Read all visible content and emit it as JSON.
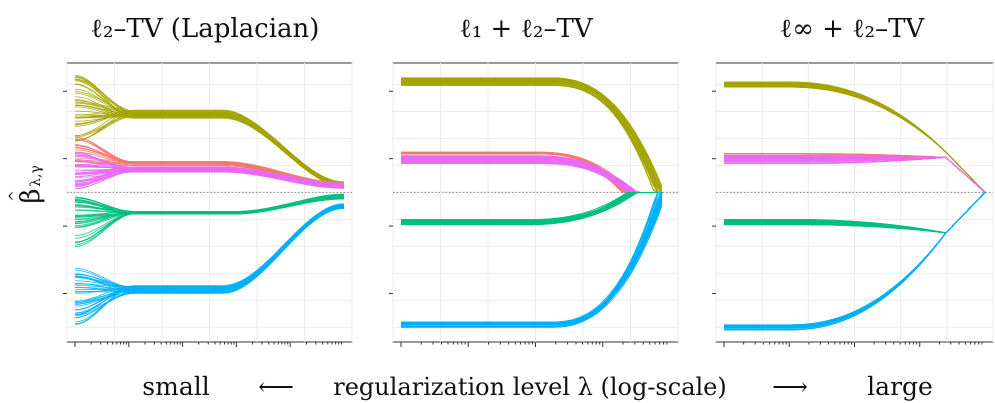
{
  "ylabel": {
    "hat": "^",
    "main": "β",
    "subscript": "λ,γ"
  },
  "xaxis_caption": {
    "left": "small",
    "left_arrow": "⟵",
    "middle": "regularization level λ (log-scale)",
    "right_arrow": "⟶",
    "right": "large"
  },
  "colors": {
    "olive": "#a3a500",
    "salmon": "#f8766d",
    "magenta": "#e76bf3",
    "green": "#00bf7d",
    "blue": "#00b0f6"
  },
  "chart_data": [
    {
      "type": "line",
      "title": "ℓ₂–TV (Laplacian)",
      "xscale": "log",
      "x_range": [
        0,
        1
      ],
      "ylim": [
        -1.05,
        0.9
      ],
      "ylabel": "β̂ λ,γ",
      "grid": true,
      "legend": "none",
      "group_paths": [
        {
          "group": "olive",
          "count": 40,
          "start": [
            0.38,
            0.9
          ],
          "plateau": 0.58,
          "end": 0.06,
          "spread": 0.2,
          "plateau_spread": 0.03,
          "decay_x": [
            0.55,
            1.0
          ]
        },
        {
          "group": "salmon",
          "count": 20,
          "start": [
            0.18,
            0.42
          ],
          "plateau": 0.21,
          "end": 0.05,
          "spread": 0.12,
          "plateau_spread": 0.02,
          "decay_x": [
            0.55,
            1.0
          ]
        },
        {
          "group": "magenta",
          "count": 40,
          "start": [
            0.02,
            0.3
          ],
          "plateau": 0.17,
          "end": 0.05,
          "spread": 0.14,
          "plateau_spread": 0.02,
          "decay_x": [
            0.55,
            1.0
          ]
        },
        {
          "group": "green",
          "count": 40,
          "start": [
            -0.42,
            -0.02
          ],
          "plateau": -0.15,
          "end": -0.03,
          "spread": 0.2,
          "plateau_spread": 0.01,
          "decay_x": [
            0.6,
            1.0
          ]
        },
        {
          "group": "blue",
          "count": 40,
          "start": [
            -0.98,
            -0.55
          ],
          "plateau": -0.72,
          "end": -0.1,
          "spread": 0.22,
          "plateau_spread": 0.03,
          "decay_x": [
            0.55,
            1.0
          ]
        }
      ]
    },
    {
      "type": "line",
      "title": "ℓ₁ + ℓ₂–TV",
      "xscale": "log",
      "x_range": [
        0,
        1
      ],
      "ylim": [
        -1.05,
        0.9
      ],
      "grid": true,
      "legend": "none",
      "group_paths": [
        {
          "group": "olive",
          "level": 0.82,
          "spread": 0.03,
          "count": 40,
          "zero_at": 0.96,
          "decay_start": 0.55
        },
        {
          "group": "salmon",
          "level": 0.28,
          "spread": 0.02,
          "count": 20,
          "zero_at": 0.84,
          "decay_start": 0.5
        },
        {
          "group": "magenta",
          "level": 0.24,
          "spread": 0.03,
          "count": 40,
          "zero_at": 0.86,
          "decay_start": 0.5
        },
        {
          "group": "green",
          "level": -0.22,
          "spread": 0.02,
          "count": 40,
          "zero_at": 0.86,
          "decay_start": 0.45
        },
        {
          "group": "blue",
          "level": -0.98,
          "spread": 0.02,
          "count": 40,
          "zero_at": 0.97,
          "decay_start": 0.55
        }
      ]
    },
    {
      "type": "line",
      "title": "ℓ∞ + ℓ₂–TV",
      "xscale": "log",
      "x_range": [
        0,
        1
      ],
      "ylim": [
        -1.05,
        0.9
      ],
      "grid": true,
      "legend": "none",
      "group_paths": [
        {
          "group": "olive",
          "level": 0.8,
          "spread": 0.02,
          "count": 40,
          "fuse_x": 0.85,
          "fuse_y": 0.3
        },
        {
          "group": "salmon",
          "level": 0.27,
          "spread": 0.02,
          "count": 20,
          "fuse_x": 0.85,
          "fuse_y": 0.3
        },
        {
          "group": "magenta",
          "level": 0.24,
          "spread": 0.03,
          "count": 40,
          "fuse_x": 0.85,
          "fuse_y": 0.3
        },
        {
          "group": "green",
          "level": -0.22,
          "spread": 0.02,
          "count": 40,
          "fuse_x": 0.85,
          "fuse_y": -0.3
        },
        {
          "group": "blue",
          "level": -1.0,
          "spread": 0.02,
          "count": 40,
          "fuse_x": 0.85,
          "fuse_y": -0.3
        }
      ]
    }
  ]
}
